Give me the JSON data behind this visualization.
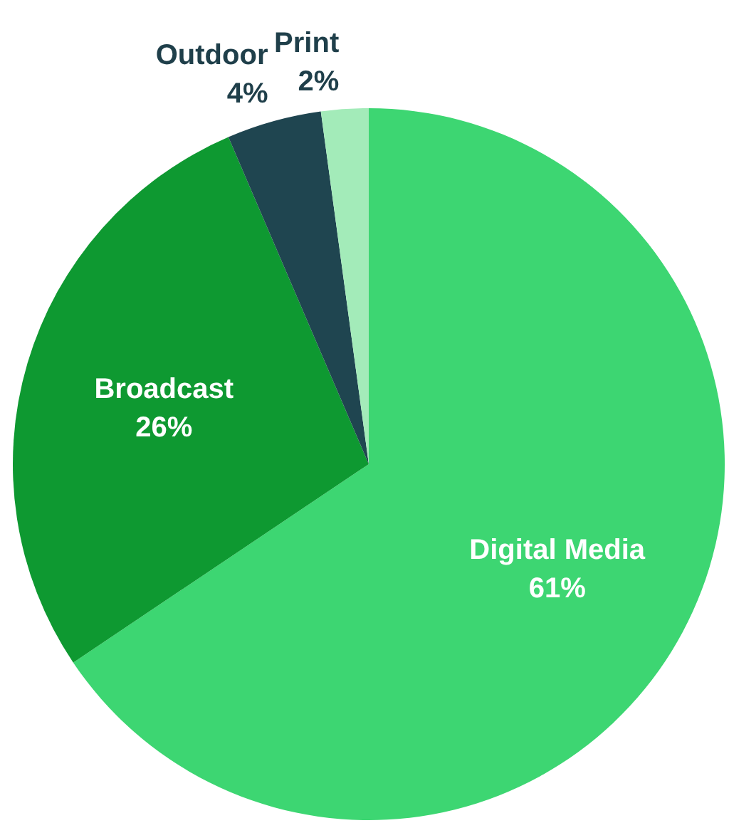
{
  "chart_data": {
    "type": "pie",
    "categories": [
      "Digital Media",
      "Broadcast",
      "Outdoor",
      "Print"
    ],
    "values": [
      61,
      26,
      4,
      2
    ],
    "colors": [
      "#3dd672",
      "#0e9931",
      "#1f4550",
      "#a3ebb9"
    ],
    "value_labels": [
      "61%",
      "26%",
      "4%",
      "2%"
    ]
  }
}
